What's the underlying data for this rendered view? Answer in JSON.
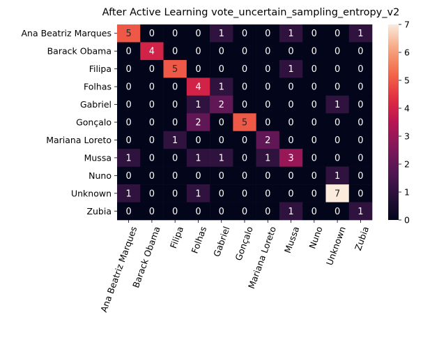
{
  "chart_data": {
    "type": "heatmap",
    "title": "After Active Learning vote_uncertain_sampling_entropy_v2",
    "xlabel": "",
    "ylabel": "",
    "row_labels": [
      "Ana Beatriz Marques",
      "Barack Obama",
      "Filipa",
      "Folhas",
      "Gabriel",
      "Gonçalo",
      "Mariana Loreto",
      "Mussa",
      "Nuno",
      "Unknown",
      "Zubia"
    ],
    "col_labels": [
      "Ana Beatriz Marques",
      "Barack Obama",
      "Filipa",
      "Folhas",
      "Gabriel",
      "Gonçalo",
      "Mariana Loreto",
      "Mussa",
      "Nuno",
      "Unknown",
      "Zubia"
    ],
    "values": [
      [
        5,
        0,
        0,
        0,
        1,
        0,
        0,
        1,
        0,
        0,
        1
      ],
      [
        0,
        4,
        0,
        0,
        0,
        0,
        0,
        0,
        0,
        0,
        0
      ],
      [
        0,
        0,
        5,
        0,
        0,
        0,
        0,
        1,
        0,
        0,
        0
      ],
      [
        0,
        0,
        0,
        4,
        1,
        0,
        0,
        0,
        0,
        0,
        0
      ],
      [
        0,
        0,
        0,
        1,
        2,
        0,
        0,
        0,
        0,
        1,
        0
      ],
      [
        0,
        0,
        0,
        2,
        0,
        5,
        0,
        0,
        0,
        0,
        0
      ],
      [
        0,
        0,
        1,
        0,
        0,
        0,
        2,
        0,
        0,
        0,
        0
      ],
      [
        1,
        0,
        0,
        1,
        1,
        0,
        1,
        3,
        0,
        0,
        0
      ],
      [
        0,
        0,
        0,
        0,
        0,
        0,
        0,
        0,
        0,
        1,
        0
      ],
      [
        1,
        0,
        0,
        1,
        0,
        0,
        0,
        0,
        0,
        7,
        0
      ],
      [
        0,
        0,
        0,
        0,
        0,
        0,
        0,
        1,
        0,
        0,
        1
      ]
    ],
    "colorbar": {
      "min": 0,
      "max": 7,
      "ticks": [
        0,
        1,
        2,
        3,
        4,
        5,
        6,
        7
      ]
    },
    "colormap": "rocket"
  }
}
